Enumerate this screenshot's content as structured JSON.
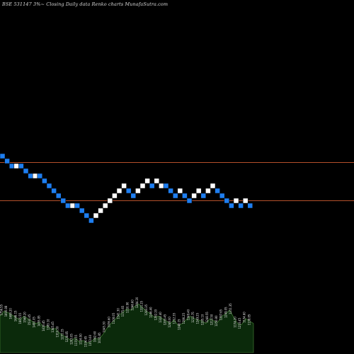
{
  "chart_data": {
    "type": "renko",
    "title": "BSE 531147 3%~ Closing Daily data Renko charts MunafaSutra.com",
    "background": "#000000",
    "colors": {
      "up_brick": "#ffffff",
      "down_brick": "#1e7ef0",
      "reference_line": "#b4502a",
      "volume_fill": "#0b2a0b",
      "volume_outline": "#4a8a3a",
      "volume_label": "#e8e8e8"
    },
    "reference_lines": [
      "upper",
      "lower"
    ],
    "bricks": [
      {
        "dir": "down",
        "level": 0
      },
      {
        "dir": "down",
        "level": 1
      },
      {
        "dir": "down",
        "level": 2
      },
      {
        "dir": "up",
        "level": 2
      },
      {
        "dir": "down",
        "level": 2
      },
      {
        "dir": "down",
        "level": 3
      },
      {
        "dir": "down",
        "level": 4
      },
      {
        "dir": "up",
        "level": 4
      },
      {
        "dir": "down",
        "level": 4
      },
      {
        "dir": "down",
        "level": 5
      },
      {
        "dir": "down",
        "level": 6
      },
      {
        "dir": "down",
        "level": 7
      },
      {
        "dir": "down",
        "level": 8
      },
      {
        "dir": "down",
        "level": 9
      },
      {
        "dir": "down",
        "level": 10
      },
      {
        "dir": "up",
        "level": 10
      },
      {
        "dir": "down",
        "level": 10
      },
      {
        "dir": "down",
        "level": 11
      },
      {
        "dir": "down",
        "level": 12
      },
      {
        "dir": "down",
        "level": 13
      },
      {
        "dir": "up",
        "level": 12
      },
      {
        "dir": "up",
        "level": 11
      },
      {
        "dir": "up",
        "level": 10
      },
      {
        "dir": "up",
        "level": 9
      },
      {
        "dir": "up",
        "level": 8
      },
      {
        "dir": "up",
        "level": 7
      },
      {
        "dir": "up",
        "level": 6
      },
      {
        "dir": "down",
        "level": 7
      },
      {
        "dir": "down",
        "level": 8
      },
      {
        "dir": "up",
        "level": 7
      },
      {
        "dir": "up",
        "level": 6
      },
      {
        "dir": "up",
        "level": 5
      },
      {
        "dir": "down",
        "level": 6
      },
      {
        "dir": "up",
        "level": 5
      },
      {
        "dir": "up",
        "level": 6
      },
      {
        "dir": "down",
        "level": 6
      },
      {
        "dir": "down",
        "level": 7
      },
      {
        "dir": "down",
        "level": 8
      },
      {
        "dir": "up",
        "level": 7
      },
      {
        "dir": "down",
        "level": 8
      },
      {
        "dir": "down",
        "level": 9
      },
      {
        "dir": "up",
        "level": 8
      },
      {
        "dir": "up",
        "level": 7
      },
      {
        "dir": "down",
        "level": 8
      },
      {
        "dir": "up",
        "level": 7
      },
      {
        "dir": "up",
        "level": 6
      },
      {
        "dir": "down",
        "level": 7
      },
      {
        "dir": "down",
        "level": 8
      },
      {
        "dir": "down",
        "level": 9
      },
      {
        "dir": "down",
        "level": 10
      },
      {
        "dir": "up",
        "level": 9
      },
      {
        "dir": "down",
        "level": 10
      },
      {
        "dir": "up",
        "level": 9
      },
      {
        "dir": "down",
        "level": 10
      }
    ],
    "volume_profile": [
      30,
      34,
      33,
      31,
      29,
      27,
      30,
      28,
      26,
      24,
      25,
      21,
      22,
      19,
      20,
      16,
      14,
      12,
      10,
      12,
      9,
      10,
      8,
      9,
      12,
      11,
      15,
      20,
      24,
      27,
      31,
      33,
      36,
      35,
      38,
      40,
      37,
      34,
      32,
      29,
      30,
      28,
      26,
      24,
      27,
      22,
      24,
      27,
      30,
      28,
      27,
      26,
      24,
      28,
      26,
      25,
      30,
      32,
      35,
      29,
      24,
      23,
      28,
      26,
      24
    ],
    "volume_labels": [
      "1756.55",
      "1690.88",
      "1688.20",
      "1646.15",
      "1605.55",
      "1568.20",
      "1531.45",
      "1491.05",
      "1455.85",
      "1418.45",
      "1383.10",
      "1345.45",
      "1310.30",
      "1272.15",
      "1238.85",
      "1203.05",
      "1170.55",
      "1136.90",
      "1104.65",
      "1072.60",
      "1042.60",
      "1015.85",
      "1045.30",
      "1076.60",
      "1108.05",
      "1141.30",
      "1175.65",
      "1210.90",
      "1246.60",
      "1284.20",
      "1321.25",
      "1283.35",
      "1246.40",
      "1282.20",
      "1322.40",
      "1283.45",
      "1248.00",
      "1212.35",
      "1248.15",
      "1286.25",
      "1249.40",
      "1212.75",
      "1249.25",
      "1285.10",
      "1248.55",
      "1213.50",
      "1250.80",
      "1287.65",
      "1249.05",
      "1211.35",
      "1174.20",
      "1210.45",
      "1174.60",
      "1138.85"
    ]
  }
}
